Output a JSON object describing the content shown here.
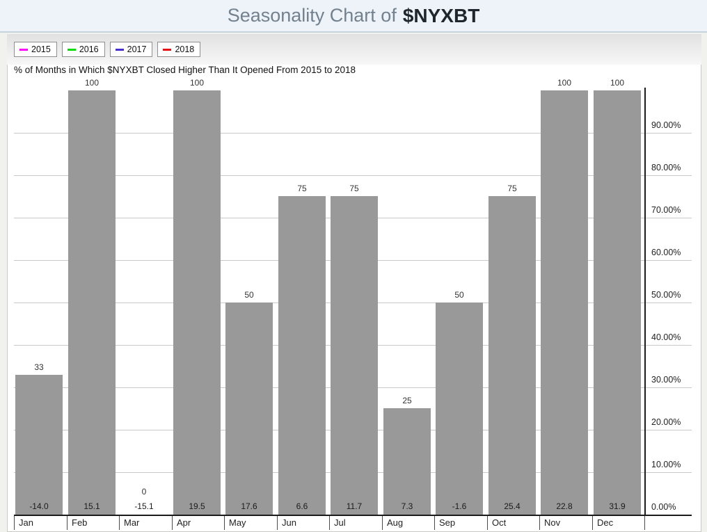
{
  "page": {
    "title_prefix": "Seasonality Chart of",
    "title_symbol": "$NYXBT"
  },
  "legend": {
    "items": [
      {
        "label": "2015",
        "color": "#ff00ff"
      },
      {
        "label": "2016",
        "color": "#00dd00"
      },
      {
        "label": "2017",
        "color": "#4430d0"
      },
      {
        "label": "2018",
        "color": "#e81212"
      }
    ]
  },
  "chart_data": {
    "type": "bar",
    "title": "% of Months in Which $NYXBT Closed Higher Than It Opened From 2015 to 2018",
    "categories": [
      "Jan",
      "Feb",
      "Mar",
      "Apr",
      "May",
      "Jun",
      "Jul",
      "Aug",
      "Sep",
      "Oct",
      "Nov",
      "Dec"
    ],
    "values": [
      33,
      100,
      0,
      100,
      50,
      75,
      75,
      25,
      50,
      75,
      100,
      100
    ],
    "bar_value_labels": [
      "33",
      "100",
      "0",
      "100",
      "50",
      "75",
      "75",
      "25",
      "50",
      "75",
      "100",
      "100"
    ],
    "avg_change_labels": [
      "-14.0",
      "15.1",
      "-15.1",
      "19.5",
      "17.6",
      "6.6",
      "11.7",
      "7.3",
      "-1.6",
      "25.4",
      "22.8",
      "31.9"
    ],
    "y_ticks_pct": [
      0,
      10,
      20,
      30,
      40,
      50,
      60,
      70,
      80,
      90
    ],
    "y_tick_labels": [
      "0.00%",
      "10.00%",
      "20.00%",
      "30.00%",
      "40.00%",
      "50.00%",
      "60.00%",
      "70.00%",
      "80.00%",
      "90.00%"
    ],
    "ylim": [
      0,
      100
    ],
    "grid": true,
    "legend_position": "top-left",
    "axis_side": "right",
    "bar_color": "#999999"
  }
}
